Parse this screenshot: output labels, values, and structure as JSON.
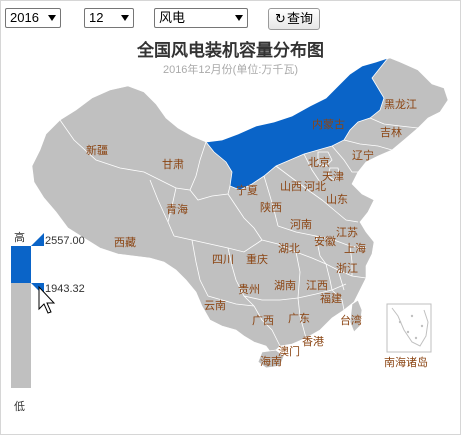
{
  "controls": {
    "year_value": "2016",
    "month_value": "12",
    "type_value": "风电",
    "query_label": "查询",
    "query_icon": "refresh-icon"
  },
  "chart": {
    "title": "全国风电装机容量分布图",
    "subtitle": "2016年12月份(单位:万千瓦)"
  },
  "legend": {
    "high_label": "高",
    "low_label": "低",
    "range_max": "2557.00",
    "range_min": "1943.32",
    "highlight_color": "#0a64c8",
    "base_color": "#c0c0c0"
  },
  "provinces": {
    "heilongjiang": "黑龙江",
    "jilin": "吉林",
    "liaoning": "辽宁",
    "neimenggu": "内蒙古",
    "xinjiang": "新疆",
    "gansu": "甘肃",
    "qinghai": "青海",
    "xizang": "西藏",
    "ningxia": "宁夏",
    "shaanxi": "陕西",
    "shanxi": "山西",
    "hebei": "河北",
    "beijing": "北京",
    "tianjin": "天津",
    "shandong": "山东",
    "henan": "河南",
    "jiangsu": "江苏",
    "anhui": "安徽",
    "shanghai": "上海",
    "hubei": "湖北",
    "sichuan": "四川",
    "chongqing": "重庆",
    "zhejiang": "浙江",
    "guizhou": "贵州",
    "hunan": "湖南",
    "jiangxi": "江西",
    "fujian": "福建",
    "yunnan": "云南",
    "guangxi": "广西",
    "guangdong": "广东",
    "taiwan": "台湾",
    "xianggang": "香港",
    "aomen": "澳门",
    "hainan": "海南",
    "nanhai": "南海诸岛"
  }
}
